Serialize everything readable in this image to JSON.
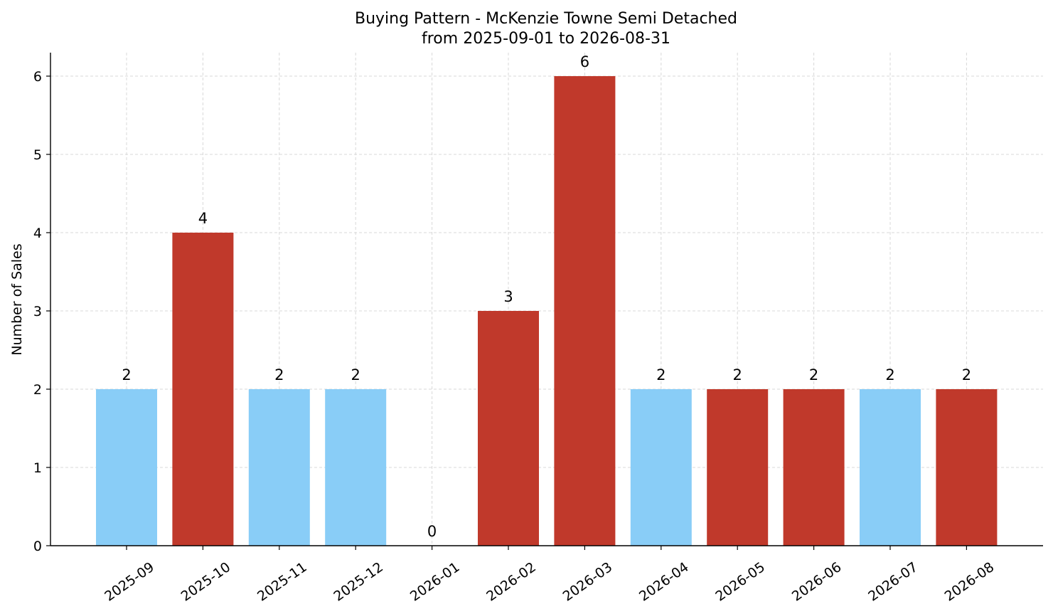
{
  "chart_data": {
    "type": "bar",
    "title": "Buying Pattern - McKenzie Towne Semi Detached",
    "subtitle": "from 2025-09-01 to 2026-08-31",
    "xlabel": "",
    "ylabel": "Number of Sales",
    "categories": [
      "2025-09",
      "2025-10",
      "2025-11",
      "2025-12",
      "2026-01",
      "2026-02",
      "2026-03",
      "2026-04",
      "2026-05",
      "2026-06",
      "2026-07",
      "2026-08"
    ],
    "values": [
      2,
      4,
      2,
      2,
      0,
      3,
      6,
      2,
      2,
      2,
      2,
      2
    ],
    "bar_colors": [
      "#89cdf7",
      "#c0392b",
      "#89cdf7",
      "#89cdf7",
      "#89cdf7",
      "#c0392b",
      "#c0392b",
      "#89cdf7",
      "#c0392b",
      "#c0392b",
      "#89cdf7",
      "#c0392b"
    ],
    "ylim": [
      0,
      6.3
    ],
    "yticks": [
      0,
      1,
      2,
      3,
      4,
      5,
      6
    ],
    "grid": true,
    "x_tick_rotation_deg": -35
  }
}
